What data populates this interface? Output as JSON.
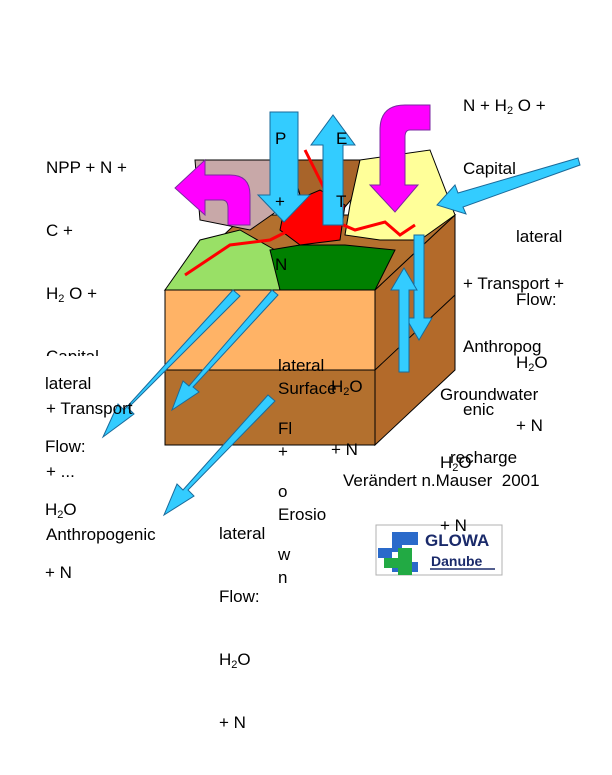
{
  "labels": {
    "top_right": {
      "line1": {
        "a": "N + H",
        "sub": "2",
        "b": " O +"
      },
      "line2": "Capital",
      "line3": "+ Transport +",
      "line4": "Anthropog",
      "line5": "enic"
    },
    "top_left": {
      "line1": "NPP + N +",
      "line2": "C +",
      "line3": {
        "a": "H",
        "sub": "2",
        "b": " O +"
      },
      "line4": "Capital",
      "line5": "+ Transport",
      "line6": "+ ...",
      "line7": "Anthropogenic"
    },
    "p_plus_n": {
      "line1": "P",
      "line2": "+",
      "line3": "N"
    },
    "e_t": {
      "line1": "E",
      "line2": "T"
    },
    "lateral_right": {
      "line1": "lateral",
      "line2": "Flow:",
      "line3": {
        "a": "H",
        "sub": "2",
        "b": "O"
      },
      "line4": "+ N"
    },
    "lateral_left": {
      "line1": "lateral",
      "line2": "Flow:",
      "line3": {
        "a": "H",
        "sub": "2",
        "b": "O"
      },
      "line4": "+ N"
    },
    "lateral_center": {
      "line1": "lateral",
      "line2": "Fl",
      "line3": "o",
      "line4": "w"
    },
    "surface_erosion": {
      "line1": "Surface",
      "line2": "+",
      "line3": "Erosio",
      "line4": "n"
    },
    "center_h2o_n": {
      "line1": {
        "a": "H",
        "sub": "2",
        "b": "O"
      },
      "line2": "+ N"
    },
    "groundwater": {
      "line1": "Groundwater",
      "line2": "recharge"
    },
    "right_h2o_n": {
      "line1": {
        "a": "H",
        "sub": "2",
        "b": "O"
      },
      "line2": "+ N"
    },
    "bottom_lateral": {
      "line1": "lateral",
      "line2": "Flow:",
      "line3": {
        "a": "H",
        "sub": "2",
        "b": "O"
      },
      "line4": "+ N"
    },
    "credit": "Verändert n.Mauser  2001"
  },
  "logo": {
    "line1": "GLOWA",
    "line2": "Danube"
  },
  "colors": {
    "arrow_blue": "#33ccff",
    "arrow_magenta": "#ff00ff",
    "soil_top_orange": "#ffb366",
    "soil_bottom_brown": "#b3702e",
    "red_zone": "#ff0000",
    "dark_green": "#008000",
    "light_green": "#99e066",
    "pale_yellow": "#ffff99",
    "mauve": "#c8a8a8"
  }
}
